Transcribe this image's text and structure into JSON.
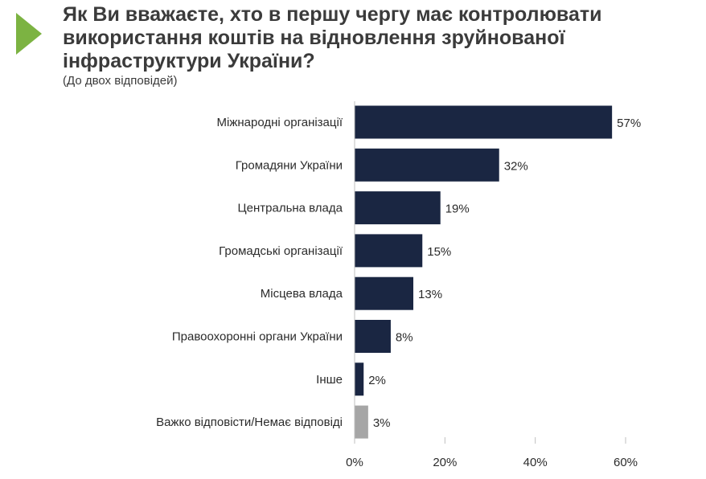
{
  "header": {
    "title": "Як Ви вважаєте, хто в першу чергу має контролювати використання коштів на відновлення зруйнованої інфраструктури України?",
    "subtitle": "(До двох відповідей)",
    "accent_color": "#7cb342"
  },
  "chart_data": {
    "type": "bar",
    "orientation": "horizontal",
    "title": "Як Ви вважаєте, хто в першу чергу має контролювати використання коштів на відновлення зруйнованої інфраструктури України?",
    "subtitle": "(До двох відповідей)",
    "categories": [
      "Міжнародні організації",
      "Громадяни України",
      "Центральна влада",
      "Громадські організації",
      "Місцева влада",
      "Правоохоронні органи України",
      "Інше",
      "Важко відповісти/Немає відповіді"
    ],
    "values": [
      57,
      32,
      19,
      15,
      13,
      8,
      2,
      3
    ],
    "value_labels": [
      "57%",
      "32%",
      "19%",
      "15%",
      "13%",
      "8%",
      "2%",
      "3%"
    ],
    "colors": [
      "#1a2642",
      "#1a2642",
      "#1a2642",
      "#1a2642",
      "#1a2642",
      "#1a2642",
      "#1a2642",
      "#a6a6a6"
    ],
    "xlim": [
      0,
      60
    ],
    "xticks": [
      0,
      20,
      40,
      60
    ],
    "xtick_labels": [
      "0%",
      "20%",
      "40%",
      "60%"
    ],
    "grid": false,
    "xlabel": "",
    "ylabel": ""
  }
}
